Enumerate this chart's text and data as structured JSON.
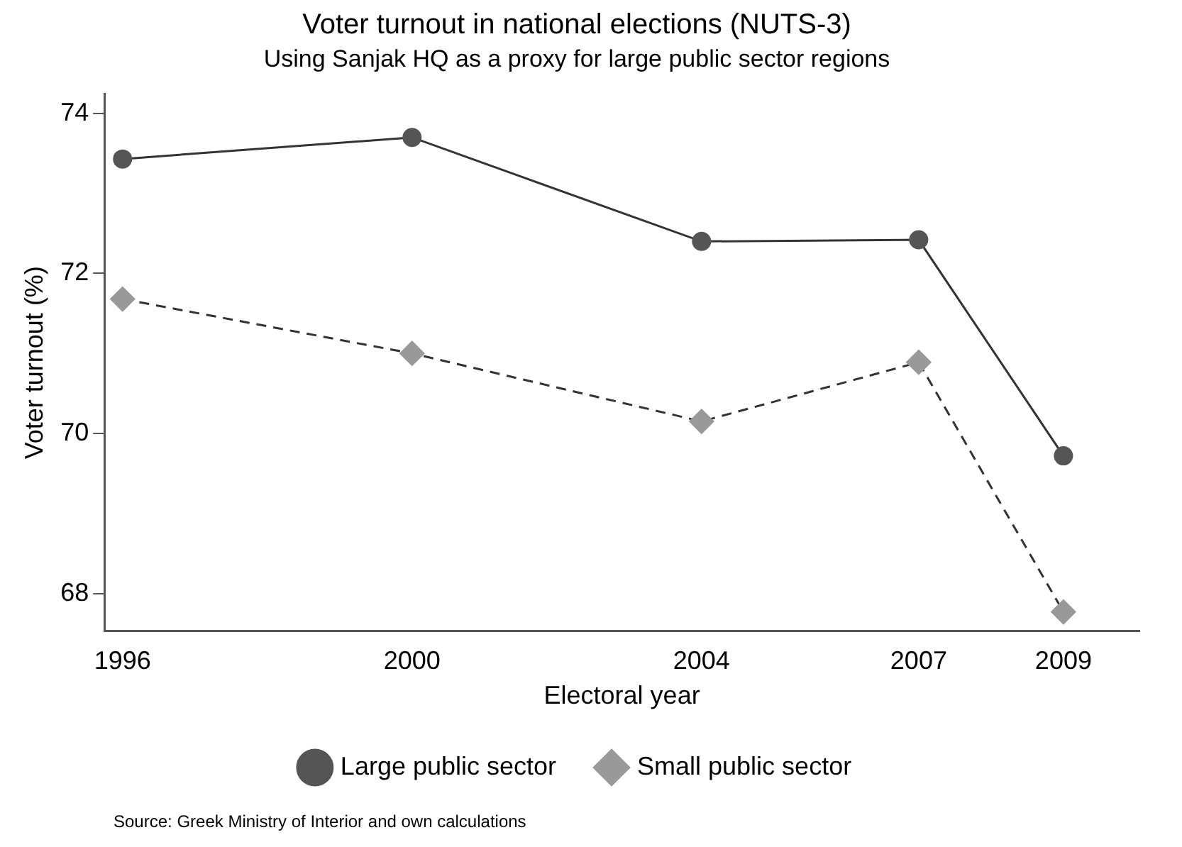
{
  "chart_data": {
    "type": "line",
    "title": "Voter turnout in national elections (NUTS-3)",
    "subtitle": "Using Sanjak HQ as a proxy for large public sector regions",
    "xlabel": "Electoral year",
    "ylabel": "Voter turnout (%)",
    "x": [
      1996,
      2000,
      2004,
      2007,
      2009
    ],
    "series": [
      {
        "name": "Large public sector",
        "color": "#555555",
        "marker": "circle",
        "line_style": "solid",
        "values": [
          73.43,
          73.7,
          72.4,
          72.42,
          69.72
        ]
      },
      {
        "name": "Small public sector",
        "color": "#999999",
        "marker": "diamond",
        "line_style": "dashed",
        "values": [
          71.68,
          71.0,
          70.15,
          70.89,
          67.77
        ]
      }
    ],
    "xlim": [
      1995.75,
      2010.05
    ],
    "xticks": [
      1996,
      2000,
      2004,
      2007,
      2009
    ],
    "ylim": [
      67.53,
      74.24
    ],
    "yticks": [
      68,
      70,
      72,
      74
    ],
    "grid": false,
    "legend": "bottom",
    "annotations": [
      "Source: Greek Ministry of Interior and own calculations"
    ]
  }
}
